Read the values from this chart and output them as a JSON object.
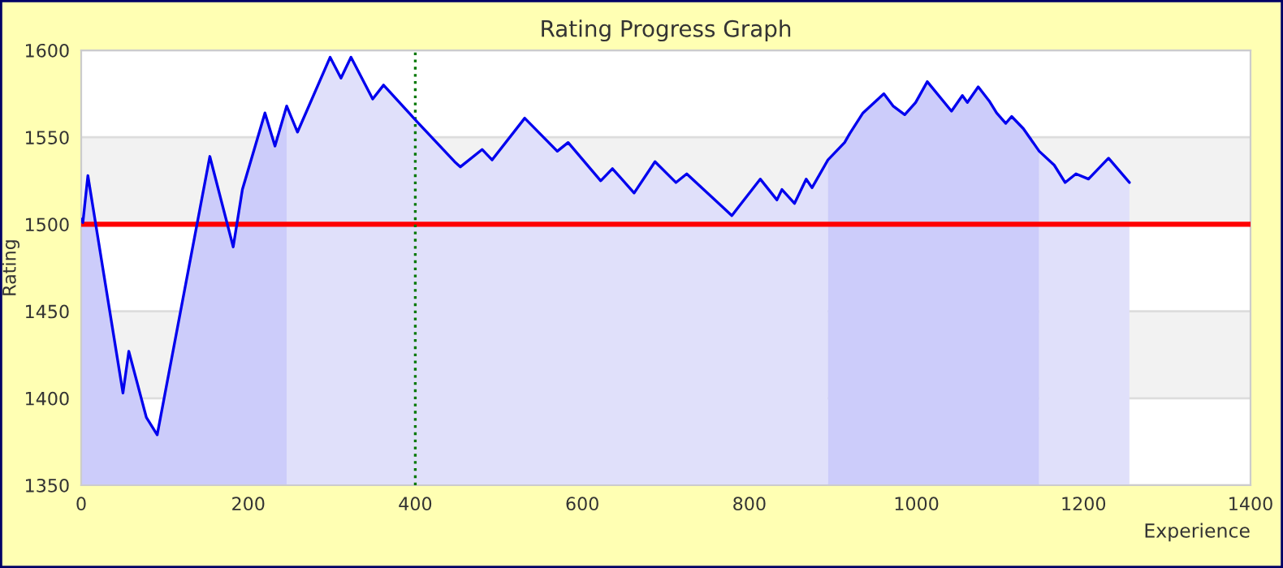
{
  "chart_data": {
    "type": "line",
    "title": "Rating Progress Graph",
    "xlabel": "Experience",
    "ylabel": "Rating",
    "xlim": [
      0,
      1400
    ],
    "xticks": [
      0,
      200,
      400,
      600,
      800,
      1000,
      1200,
      1400
    ],
    "ylim": [
      1350,
      1600
    ],
    "yticks": [
      1350,
      1400,
      1450,
      1500,
      1550,
      1600
    ],
    "grid": "y",
    "series": [
      {
        "color": "#0000ee",
        "x": [
          0,
          2,
          8,
          50,
          57,
          78,
          91,
          154,
          182,
          193,
          220,
          232,
          246,
          259,
          298,
          311,
          323,
          349,
          362,
          402,
          447,
          454,
          480,
          492,
          531,
          570,
          583,
          622,
          636,
          662,
          687,
          712,
          725,
          779,
          813,
          833,
          839,
          854,
          868,
          875,
          894,
          914,
          920,
          936,
          961,
          972,
          986,
          999,
          1013,
          1042,
          1055,
          1061,
          1074,
          1087,
          1096,
          1107,
          1114,
          1128,
          1147,
          1165,
          1178,
          1191,
          1206,
          1230,
          1255
        ],
        "values": [
          1503,
          1501,
          1528,
          1403,
          1427,
          1389,
          1379,
          1539,
          1487,
          1520,
          1564,
          1545,
          1568,
          1553,
          1596,
          1584,
          1596,
          1572,
          1580,
          1559,
          1536,
          1533,
          1543,
          1537,
          1561,
          1542,
          1547,
          1525,
          1532,
          1518,
          1536,
          1524,
          1529,
          1505,
          1526,
          1514,
          1520,
          1512,
          1526,
          1521,
          1537,
          1547,
          1552,
          1564,
          1575,
          1568,
          1563,
          1570,
          1582,
          1565,
          1574,
          1570,
          1579,
          1571,
          1564,
          1558,
          1562,
          1555,
          1542,
          1534,
          1524,
          1529,
          1526,
          1538,
          1524
        ]
      },
      {
        "type": "area",
        "color": "#ccccfa",
        "x": [
          0,
          2,
          8,
          50,
          57,
          78,
          91,
          154,
          182,
          193,
          220,
          232,
          246
        ],
        "values": [
          1503,
          1501,
          1528,
          1403,
          1427,
          1389,
          1379,
          1539,
          1487,
          1520,
          1564,
          1545,
          1568
        ]
      },
      {
        "type": "area",
        "color": "#e0e0fa",
        "x": [
          246,
          259,
          298,
          311,
          323,
          349,
          362,
          402,
          447,
          454,
          480,
          492,
          531,
          570,
          583,
          622,
          636,
          662,
          687,
          712,
          725,
          779,
          813,
          833,
          839,
          854,
          868,
          875,
          894
        ],
        "values": [
          1568,
          1553,
          1596,
          1584,
          1596,
          1572,
          1580,
          1559,
          1536,
          1533,
          1543,
          1537,
          1561,
          1542,
          1547,
          1525,
          1532,
          1518,
          1536,
          1524,
          1529,
          1505,
          1526,
          1514,
          1520,
          1512,
          1526,
          1521,
          1537
        ]
      },
      {
        "type": "area",
        "color": "#ccccfa",
        "x": [
          894,
          914,
          920,
          936,
          961,
          972,
          986,
          999,
          1013,
          1042,
          1055,
          1061,
          1074,
          1087,
          1096,
          1107,
          1114,
          1128,
          1147
        ],
        "values": [
          1537,
          1547,
          1552,
          1564,
          1575,
          1568,
          1563,
          1570,
          1582,
          1565,
          1574,
          1570,
          1579,
          1571,
          1564,
          1558,
          1562,
          1555,
          1542
        ]
      },
      {
        "type": "area",
        "color": "#e0e0fa",
        "x": [
          1147,
          1165,
          1178,
          1191,
          1206,
          1230,
          1255
        ],
        "values": [
          1542,
          1534,
          1524,
          1529,
          1526,
          1538,
          1524
        ]
      }
    ],
    "ref_lines": [
      {
        "axis": "y",
        "value": 1500,
        "color": "#ff0000",
        "line_style": "solid"
      },
      {
        "axis": "x",
        "value": 400,
        "color": "#007700",
        "line_style": "dotted"
      }
    ],
    "bands": [
      {
        "axis": "y",
        "from": 1400,
        "to": 1450,
        "color": "#f2f2f2"
      },
      {
        "axis": "y",
        "from": 1500,
        "to": 1550,
        "color": "#f2f2f2"
      }
    ]
  }
}
